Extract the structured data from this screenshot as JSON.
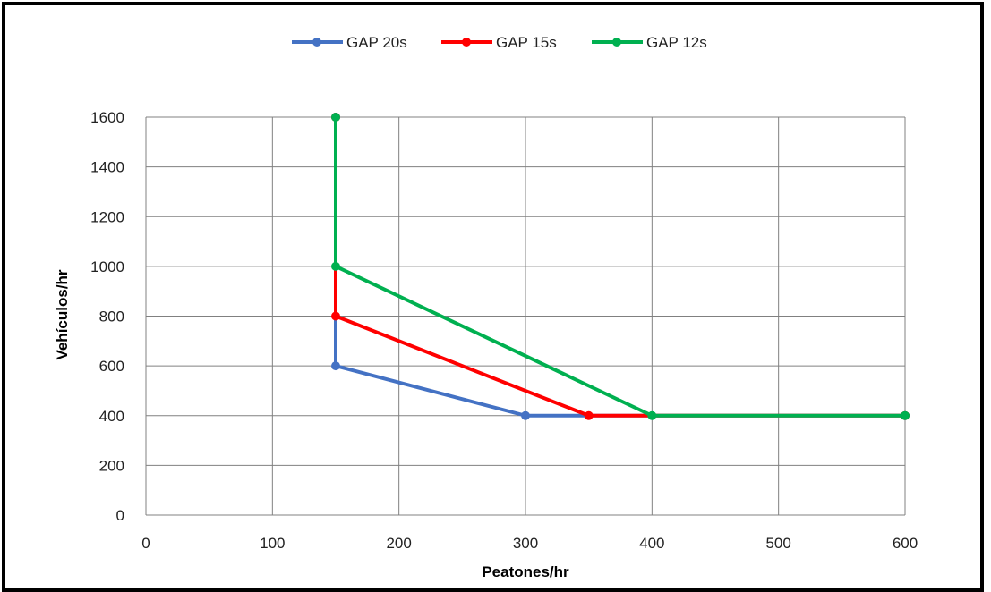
{
  "chart_data": {
    "type": "line",
    "title": "",
    "xlabel": "Peatones/hr",
    "ylabel": "Vehículos/hr",
    "xlim": [
      0,
      600
    ],
    "ylim": [
      0,
      1600
    ],
    "x_ticks": [
      "0",
      "100",
      "200",
      "300",
      "400",
      "500",
      "600"
    ],
    "y_ticks": [
      "0",
      "200",
      "400",
      "600",
      "800",
      "1000",
      "1200",
      "1400",
      "1600"
    ],
    "x_tick_values": [
      0,
      100,
      200,
      300,
      400,
      500,
      600
    ],
    "y_tick_values": [
      0,
      200,
      400,
      600,
      800,
      1000,
      1200,
      1400,
      1600
    ],
    "grid": true,
    "legend_position": "top",
    "series": [
      {
        "name": "GAP 20s",
        "color": "#4472C4",
        "points": [
          [
            150,
            1600
          ],
          [
            150,
            600
          ],
          [
            300,
            400
          ],
          [
            600,
            400
          ]
        ]
      },
      {
        "name": "GAP 15s",
        "color": "#FF0000",
        "points": [
          [
            150,
            1600
          ],
          [
            150,
            800
          ],
          [
            350,
            400
          ],
          [
            600,
            400
          ]
        ]
      },
      {
        "name": "GAP 12s",
        "color": "#00B050",
        "points": [
          [
            150,
            1600
          ],
          [
            150,
            1000
          ],
          [
            400,
            400
          ],
          [
            600,
            400
          ]
        ]
      }
    ]
  }
}
